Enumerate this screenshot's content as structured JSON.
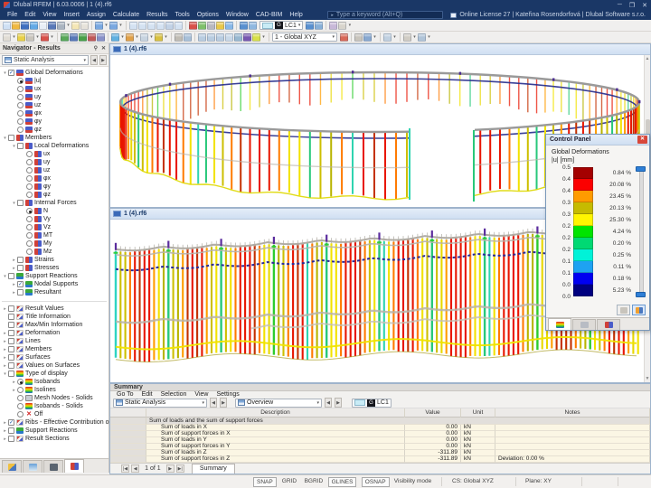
{
  "window": {
    "title": "Dlubal RFEM | 6.03.0006 | 1 (4).rf6"
  },
  "menu": {
    "items": [
      "File",
      "Edit",
      "View",
      "Insert",
      "Assign",
      "Calculate",
      "Results",
      "Tools",
      "Options",
      "Window",
      "CAD-BIM",
      "Help"
    ],
    "search_placeholder": "Type a keyword (Alt+Q)",
    "license": "Online License 27 | Kateřina Rosendorfová | Dlubal Software s.r.o."
  },
  "toolbar1": {
    "lc_badge": "G",
    "lc": "LC1",
    "icons": [
      {
        "n": "new-model-icon",
        "c": "#cfe0f4"
      },
      {
        "n": "open-file-icon",
        "c": "#f0b840"
      },
      {
        "n": "save-icon",
        "c": "#3f6fc0"
      },
      {
        "n": "cloud-icon",
        "c": "#62aae6"
      },
      {
        "n": "copy-icon",
        "c": "#e8eef6"
      },
      {
        "n": "save-as-icon",
        "c": "#5878b8"
      },
      {
        "n": "print-icon",
        "c": "#aab4c0"
      },
      {
        "n": "caret"
      },
      {
        "n": "new-window-icon",
        "c": "#f4e6b4"
      },
      {
        "n": "paste-icon",
        "c": "#e6e2da"
      },
      {
        "n": "sep"
      },
      {
        "n": "undo-icon",
        "c": "#7aa8e0"
      },
      {
        "n": "caret"
      },
      {
        "n": "redo-icon",
        "c": "#7aa8e0"
      },
      {
        "n": "caret"
      },
      {
        "n": "sep"
      },
      {
        "n": "view-model-icon",
        "c": "#d4e2f2"
      },
      {
        "n": "view-tables-icon",
        "c": "#d4e2f2"
      },
      {
        "n": "view-both-icon",
        "c": "#d4e2f2"
      },
      {
        "n": "view-split-icon",
        "c": "#d4e2f2"
      },
      {
        "n": "view-report-icon",
        "c": "#c2d2e6"
      },
      {
        "n": "view-custom-icon",
        "c": "#d4e2f2"
      },
      {
        "n": "sep"
      },
      {
        "n": "calculate-all-icon",
        "c": "#d85048"
      },
      {
        "n": "check-model-icon",
        "c": "#7ec06a"
      },
      {
        "n": "calculation-params-icon",
        "c": "#b8b8c0"
      },
      {
        "n": "results-table-icon",
        "c": "#e8c84a"
      },
      {
        "n": "graphic-results-icon",
        "c": "#88b8e8"
      },
      {
        "n": "sep"
      },
      {
        "n": "loads-icon",
        "c": "#5890d0"
      },
      {
        "n": "imperfections-icon",
        "c": "#90b8e0"
      }
    ],
    "icons_right": [
      {
        "n": "show-results-icon",
        "c": "#5890d0"
      },
      {
        "n": "result-values-icon",
        "c": "#88b0d8"
      },
      {
        "n": "sep"
      },
      {
        "n": "print-graphic-icon",
        "c": "#c8b8d8"
      },
      {
        "n": "clipboard-icon",
        "c": "#d8d4cc"
      },
      {
        "n": "caret"
      }
    ]
  },
  "toolbar2": {
    "cs": "1 - Global XYZ",
    "icons_left": [
      {
        "n": "select-icon",
        "c": "#e0dcd4"
      },
      {
        "n": "caret"
      },
      {
        "n": "zoom-icon",
        "c": "#e8d048"
      },
      {
        "n": "pan-icon",
        "c": "#c8c4bc"
      },
      {
        "n": "caret"
      },
      {
        "n": "edit-icon",
        "c": "#d85048"
      },
      {
        "n": "caret"
      },
      {
        "n": "sep"
      },
      {
        "n": "node-icon",
        "c": "#58a858"
      },
      {
        "n": "line-icon",
        "c": "#5878b8"
      },
      {
        "n": "member-icon",
        "c": "#48a048"
      },
      {
        "n": "surface-icon",
        "c": "#c05858"
      },
      {
        "n": "solid-icon",
        "c": "#8890c8"
      },
      {
        "n": "sep"
      },
      {
        "n": "support-icon",
        "c": "#60b0e0"
      },
      {
        "n": "caret"
      },
      {
        "n": "hinge-icon",
        "c": "#e0a048"
      },
      {
        "n": "caret"
      },
      {
        "n": "mesh-icon",
        "c": "#c8d4e0"
      },
      {
        "n": "caret"
      },
      {
        "n": "load-icon",
        "c": "#d8c040"
      },
      {
        "n": "caret"
      },
      {
        "n": "sep"
      },
      {
        "n": "guide-icon",
        "c": "#c0bcb4"
      },
      {
        "n": "dimension-icon",
        "c": "#a8c0d8"
      },
      {
        "n": "sep"
      },
      {
        "n": "move-icon",
        "c": "#b8cce0"
      },
      {
        "n": "rotate-icon",
        "c": "#b8cce0"
      },
      {
        "n": "mirror-icon",
        "c": "#b8cce0"
      },
      {
        "n": "align-icon",
        "c": "#c8d8e8"
      },
      {
        "n": "trim-icon",
        "c": "#98b8d0"
      },
      {
        "n": "divide-icon",
        "c": "#7858b0"
      },
      {
        "n": "isobands-display-icon",
        "c": "#d8e048"
      },
      {
        "n": "caret"
      },
      {
        "n": "sep"
      }
    ],
    "icons_right": [
      {
        "n": "zoom-selected-icon",
        "c": "#d86858"
      },
      {
        "n": "sep"
      },
      {
        "n": "view-properties-icon",
        "c": "#c8c4bc"
      },
      {
        "n": "navigator-toggle-icon",
        "c": "#88a8d0"
      },
      {
        "n": "caret"
      },
      {
        "n": "sep"
      },
      {
        "n": "display-mode-icon",
        "c": "#c0d0e0"
      },
      {
        "n": "caret"
      },
      {
        "n": "sep"
      },
      {
        "n": "section-icon",
        "c": "#d0ccc4"
      },
      {
        "n": "caret"
      },
      {
        "n": "visibility-icon",
        "c": "#b0c4d8"
      },
      {
        "n": "caret"
      }
    ]
  },
  "navigator": {
    "title": "Navigator - Results",
    "combo": "Static Analysis",
    "tree": [
      {
        "l": 0,
        "e": "v",
        "c": "c1",
        "i": "def",
        "t": "Global Deformations",
        "n": "global-deformations"
      },
      {
        "l": 1,
        "e": "",
        "c": "r1",
        "i": "def",
        "t": "|u|",
        "n": "u-abs"
      },
      {
        "l": 1,
        "e": "",
        "c": "r0",
        "i": "def",
        "t": "ux",
        "n": "ux"
      },
      {
        "l": 1,
        "e": "",
        "c": "r0",
        "i": "def",
        "t": "uy",
        "n": "uy"
      },
      {
        "l": 1,
        "e": "",
        "c": "r0",
        "i": "def",
        "t": "uz",
        "n": "uz"
      },
      {
        "l": 1,
        "e": "",
        "c": "r0",
        "i": "def",
        "t": "φx",
        "n": "phix"
      },
      {
        "l": 1,
        "e": "",
        "c": "r0",
        "i": "def",
        "t": "φy",
        "n": "phiy"
      },
      {
        "l": 1,
        "e": "",
        "c": "r0",
        "i": "def",
        "t": "φz",
        "n": "phiz"
      },
      {
        "l": 0,
        "e": "v",
        "c": "c0",
        "i": "mem",
        "t": "Members",
        "n": "members"
      },
      {
        "l": 1,
        "e": "v",
        "c": "c0",
        "i": "mem",
        "t": "Local Deformations",
        "n": "local-deformations"
      },
      {
        "l": 2,
        "e": "",
        "c": "r0",
        "i": "mem",
        "t": "ux",
        "n": "m-ux"
      },
      {
        "l": 2,
        "e": "",
        "c": "r0",
        "i": "mem",
        "t": "uy",
        "n": "m-uy"
      },
      {
        "l": 2,
        "e": "",
        "c": "r0",
        "i": "mem",
        "t": "uz",
        "n": "m-uz"
      },
      {
        "l": 2,
        "e": "",
        "c": "r0",
        "i": "mem",
        "t": "φx",
        "n": "m-phix"
      },
      {
        "l": 2,
        "e": "",
        "c": "r0",
        "i": "mem",
        "t": "φy",
        "n": "m-phiy"
      },
      {
        "l": 2,
        "e": "",
        "c": "r0",
        "i": "mem",
        "t": "φz",
        "n": "m-phiz"
      },
      {
        "l": 1,
        "e": "v",
        "c": "c0",
        "i": "mem",
        "t": "Internal Forces",
        "n": "internal-forces"
      },
      {
        "l": 2,
        "e": "",
        "c": "r1",
        "i": "mem",
        "t": "N",
        "n": "force-n"
      },
      {
        "l": 2,
        "e": "",
        "c": "r0",
        "i": "mem",
        "t": "Vy",
        "n": "force-vy"
      },
      {
        "l": 2,
        "e": "",
        "c": "r0",
        "i": "mem",
        "t": "Vz",
        "n": "force-vz"
      },
      {
        "l": 2,
        "e": "",
        "c": "r0",
        "i": "mem",
        "t": "MT",
        "n": "force-mt"
      },
      {
        "l": 2,
        "e": "",
        "c": "r0",
        "i": "mem",
        "t": "My",
        "n": "force-my"
      },
      {
        "l": 2,
        "e": "",
        "c": "r0",
        "i": "mem",
        "t": "Mz",
        "n": "force-mz"
      },
      {
        "l": 1,
        "e": ">",
        "c": "c0",
        "i": "mem",
        "t": "Strains",
        "n": "strains"
      },
      {
        "l": 1,
        "e": ">",
        "c": "c0",
        "i": "mem",
        "t": "Stresses",
        "n": "stresses"
      },
      {
        "l": 0,
        "e": "v",
        "c": "c0",
        "i": "sup",
        "t": "Support Reactions",
        "n": "support-reactions"
      },
      {
        "l": 1,
        "e": ">",
        "c": "c1",
        "i": "sup",
        "t": "Nodal Supports",
        "n": "nodal-supports"
      },
      {
        "l": 1,
        "e": ">",
        "c": "c0",
        "i": "sup",
        "t": "Resultant",
        "n": "resultant"
      },
      {
        "sep": true
      },
      {
        "l": 0,
        "e": ">",
        "c": "c0",
        "i": "res",
        "t": "Result Values",
        "n": "result-values"
      },
      {
        "l": 0,
        "e": "",
        "c": "c0",
        "i": "res",
        "t": "Title Information",
        "n": "title-information"
      },
      {
        "l": 0,
        "e": "",
        "c": "c0",
        "i": "res",
        "t": "Max/Min Information",
        "n": "maxmin-information"
      },
      {
        "l": 0,
        "e": ">",
        "c": "c0",
        "i": "res",
        "t": "Deformation",
        "n": "deformation"
      },
      {
        "l": 0,
        "e": ">",
        "c": "c0",
        "i": "res",
        "t": "Lines",
        "n": "lines"
      },
      {
        "l": 0,
        "e": ">",
        "c": "c0",
        "i": "res",
        "t": "Members",
        "n": "members-display"
      },
      {
        "l": 0,
        "e": ">",
        "c": "c0",
        "i": "res",
        "t": "Surfaces",
        "n": "surfaces"
      },
      {
        "l": 0,
        "e": ">",
        "c": "c0",
        "i": "res",
        "t": "Values on Surfaces",
        "n": "values-on-surfaces"
      },
      {
        "l": 0,
        "e": "v",
        "c": "c0",
        "i": "rain",
        "t": "Type of display",
        "n": "type-of-display"
      },
      {
        "l": 1,
        "e": ">",
        "c": "r1",
        "i": "rain",
        "t": "Isobands",
        "n": "isobands"
      },
      {
        "l": 1,
        "e": ">",
        "c": "r0",
        "i": "rain",
        "t": "Isolines",
        "n": "isolines"
      },
      {
        "l": 1,
        "e": "",
        "c": "r0",
        "i": "mesh",
        "t": "Mesh Nodes - Solids",
        "n": "mesh-nodes-solids"
      },
      {
        "l": 1,
        "e": "",
        "c": "r0",
        "i": "rain",
        "t": "Isobands - Solids",
        "n": "isobands-solids"
      },
      {
        "l": 1,
        "e": "",
        "c": "r0",
        "i": "off",
        "t": "Off",
        "n": "display-off"
      },
      {
        "l": 0,
        "e": ">",
        "c": "c1",
        "i": "res",
        "t": "Ribs - Effective Contribution on Surfac...",
        "n": "ribs"
      },
      {
        "l": 0,
        "e": ">",
        "c": "c0",
        "i": "sup",
        "t": "Support Reactions",
        "n": "support-reactions-display"
      },
      {
        "l": 0,
        "e": ">",
        "c": "c0",
        "i": "res",
        "t": "Result Sections",
        "n": "result-sections"
      }
    ],
    "tabs": [
      {
        "n": "navigator-tab-data",
        "g": "linear-gradient(135deg,#f0c040 50%,#4a78c0 50%)"
      },
      {
        "n": "navigator-tab-display",
        "g": "linear-gradient(180deg,#68a0d8,#d8e8f4)"
      },
      {
        "n": "navigator-tab-views",
        "g": "#5a6470"
      },
      {
        "n": "navigator-tab-results",
        "g": "linear-gradient(90deg,#d04038 50%,#4a5cc8 50%)"
      }
    ]
  },
  "viewport1": {
    "tab": "1 (4).rf6"
  },
  "viewport2": {
    "tab": "1 (4).rf6"
  },
  "control_panel": {
    "title": "Control Panel",
    "line1": "Global Deformations",
    "line2": "|u| [mm]",
    "legend": {
      "boundaries": [
        "0.5",
        "0.4",
        "0.4",
        "0.3",
        "0.3",
        "0.2",
        "0.2",
        "0.2",
        "0.1",
        "0.1",
        "0.0",
        "0.0"
      ],
      "bands": [
        {
          "color": "#a40000",
          "pct": "0.84 %"
        },
        {
          "color": "#fb0000",
          "pct": "20.08 %"
        },
        {
          "color": "#ff9b00",
          "pct": "23.45 %"
        },
        {
          "color": "#c6bb00",
          "pct": "20.13 %"
        },
        {
          "color": "#fff500",
          "pct": "25.30 %"
        },
        {
          "color": "#00e400",
          "pct": "4.24 %"
        },
        {
          "color": "#00d973",
          "pct": "0.20 %"
        },
        {
          "color": "#00f2d8",
          "pct": "0.25 %"
        },
        {
          "color": "#1ea2f2",
          "pct": "0.11 %"
        },
        {
          "color": "#0000f0",
          "pct": "0.18 %"
        },
        {
          "color": "#000080",
          "pct": "5.23 %"
        }
      ]
    },
    "tabs": [
      {
        "n": "panel-tab-color-scale",
        "g": "linear-gradient(180deg,#e02020,#f0e000 45%,#30c030 70%,#2060e0)",
        "active": true
      },
      {
        "n": "panel-tab-filter",
        "g": "#b8bcc4",
        "active": false
      },
      {
        "n": "panel-tab-display-factors",
        "g": "linear-gradient(90deg,#d04038 50%,#4a5cc8 50%)",
        "active": false
      }
    ]
  },
  "summary": {
    "title": "Summary",
    "menu": [
      "Go To",
      "Edit",
      "Selection",
      "View",
      "Settings"
    ],
    "combo1": "Static Analysis",
    "combo2": "Overview",
    "lc_badge": "G",
    "lc": "LC1",
    "pager": "1 of 1",
    "tab": "Summary",
    "table": {
      "headers": [
        "",
        "Description",
        "Value",
        "Unit",
        "Notes"
      ],
      "section": "Sum of loads and the sum of support forces",
      "rows": [
        {
          "desc": "Sum of loads in X",
          "value": "0.00",
          "unit": "kN",
          "notes": ""
        },
        {
          "desc": "Sum of support forces in X",
          "value": "0.00",
          "unit": "kN",
          "notes": ""
        },
        {
          "desc": "Sum of loads in Y",
          "value": "0.00",
          "unit": "kN",
          "notes": ""
        },
        {
          "desc": "Sum of support forces in Y",
          "value": "0.00",
          "unit": "kN",
          "notes": ""
        },
        {
          "desc": "Sum of loads in Z",
          "value": "-311.89",
          "unit": "kN",
          "notes": ""
        },
        {
          "desc": "Sum of support forces in Z",
          "value": "-311.89",
          "unit": "kN",
          "notes": "Deviation: 0.00 %"
        }
      ]
    }
  },
  "statusbar": {
    "toggles": [
      {
        "t": "SNAP",
        "on": true
      },
      {
        "t": "GRID",
        "on": false
      },
      {
        "t": "BGRID",
        "on": false
      },
      {
        "t": "GLINES",
        "on": true
      },
      {
        "t": "OSNAP",
        "on": true
      },
      {
        "t": "Visibility mode",
        "on": false
      }
    ],
    "cs": "CS: Global XYZ",
    "plane": "Plane: XY"
  }
}
